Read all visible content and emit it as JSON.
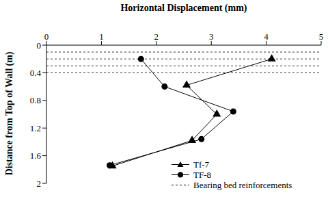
{
  "chart_data": {
    "type": "line",
    "x_label": "Horizontal  Displacement (mm)",
    "y_label": "Distance from  Top of Wall (m)",
    "xlim": [
      0,
      5
    ],
    "xticks": [
      0,
      1,
      2,
      3,
      4,
      5
    ],
    "ylim": [
      0,
      2
    ],
    "yticks": [
      0,
      0.4,
      0.8,
      1.2,
      1.6,
      2
    ],
    "grid": false,
    "legend": "lower right",
    "series": [
      {
        "name": "Tf-7",
        "color": "#000000",
        "marker": "triangle",
        "line_style": "solid",
        "x": [
          4.1,
          2.55,
          3.1,
          2.65,
          1.2
        ],
        "values": [
          0.2,
          0.58,
          1.0,
          1.38,
          1.75
        ]
      },
      {
        "name": "TF-8",
        "color": "#000000",
        "marker": "circle",
        "line_style": "solid",
        "x": [
          1.72,
          2.15,
          3.4,
          2.82,
          1.15
        ],
        "values": [
          0.2,
          0.6,
          0.96,
          1.36,
          1.74
        ]
      }
    ],
    "reference_lines": {
      "name": "Bearing bed reinforcements",
      "color": "#000000",
      "line_style": "dashed",
      "values": [
        0.1,
        0.2,
        0.3,
        0.4
      ]
    }
  }
}
